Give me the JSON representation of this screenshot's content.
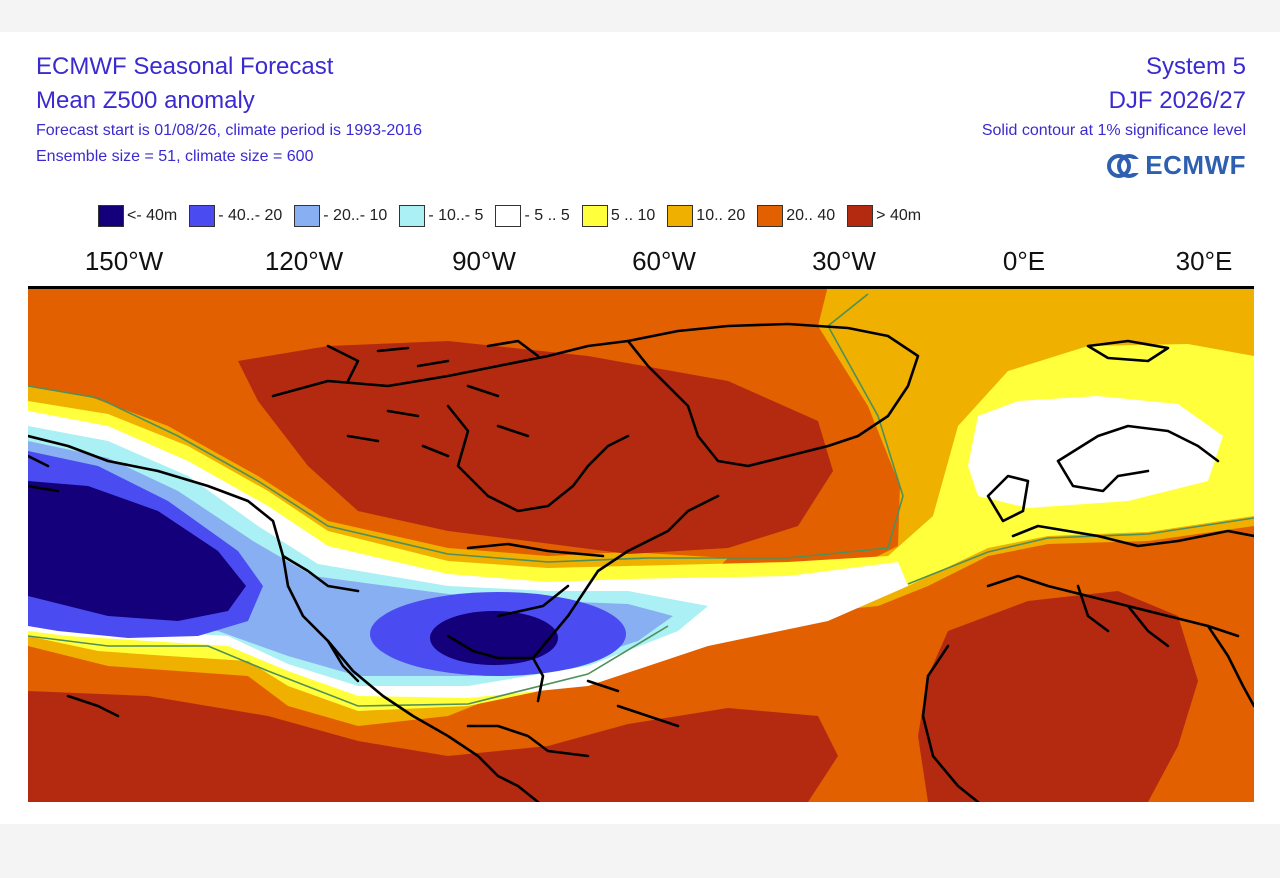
{
  "header": {
    "title_line1": "ECMWF Seasonal Forecast",
    "title_line2": "Mean Z500 anomaly",
    "info_line1": "Forecast start is 01/08/26, climate period is 1993-2016",
    "info_line2": "Ensemble size = 51, climate size = 600",
    "system": "System 5",
    "season": "DJF 2026/27",
    "significance": "Solid contour at 1% significance level",
    "brand": "ECMWF"
  },
  "legend": [
    {
      "label": "<- 40m",
      "color": "#13007a"
    },
    {
      "label": "- 40..- 20",
      "color": "#4a4cf2"
    },
    {
      "label": "- 20..- 10",
      "color": "#87aff2"
    },
    {
      "label": "- 10..- 5",
      "color": "#aaf0f4"
    },
    {
      "label": "- 5 .. 5",
      "color": "#ffffff"
    },
    {
      "label": "5 .. 10",
      "color": "#ffff3c"
    },
    {
      "label": "10.. 20",
      "color": "#f0b000"
    },
    {
      "label": "20.. 40",
      "color": "#e36000"
    },
    {
      "label": ">  40m",
      "color": "#b32a10"
    }
  ],
  "longitudes": [
    "150°W",
    "120°W",
    "90°W",
    "60°W",
    "30°W",
    "0°E",
    "30°E"
  ]
}
